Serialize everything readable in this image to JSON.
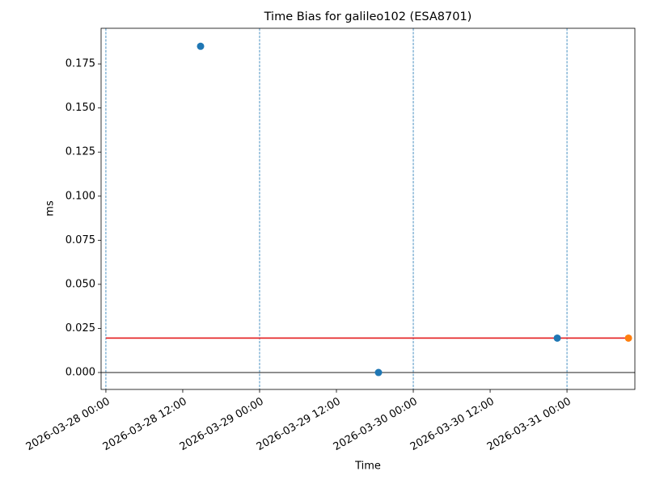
{
  "chart_data": {
    "type": "scatter",
    "title": "Time Bias for galileo102 (ESA8701)",
    "x_label": "Time",
    "y_label": "ms",
    "xlim": [
      "2026-03-27 23:15",
      "2026-03-31 10:36"
    ],
    "xticks": [
      "2026-03-28 00:00",
      "2026-03-28 12:00",
      "2026-03-29 00:00",
      "2026-03-29 12:00",
      "2026-03-30 00:00",
      "2026-03-30 12:00",
      "2026-03-31 00:00"
    ],
    "ylim": [
      -0.0096,
      0.1952
    ],
    "yticks": [
      {
        "value": 0,
        "label": "0.000"
      },
      {
        "value": 0.025,
        "label": "0.025"
      },
      {
        "value": 0.05,
        "label": "0.050"
      },
      {
        "value": 0.075,
        "label": "0.075"
      },
      {
        "value": 0.1,
        "label": "0.100"
      },
      {
        "value": 0.125,
        "label": "0.125"
      },
      {
        "value": 0.15,
        "label": "0.150"
      },
      {
        "value": 0.175,
        "label": "0.175"
      }
    ],
    "vlines": [
      "2026-03-28 00:00",
      "2026-03-29 00:00",
      "2026-03-30 00:00",
      "2026-03-31 00:00"
    ],
    "vline_color": "#1f77b4",
    "hline": 0,
    "hline_color": "#000000",
    "series": [
      {
        "style": "markers",
        "color": "#1f77b4",
        "x": [
          "2026-03-28 14:47",
          "2026-03-29 18:34",
          "2026-03-30 22:29"
        ],
        "values": [
          0.185,
          0,
          0.0195
        ]
      },
      {
        "style": "markers",
        "color": "#ff7f0e",
        "x": [
          "2026-03-31 09:36"
        ],
        "values": [
          0.0195
        ]
      },
      {
        "style": "line",
        "color": "#e41a1c",
        "x": [
          "2026-03-28 00:00",
          "2026-03-31 09:36"
        ],
        "values": [
          0.0195,
          0.0195
        ]
      }
    ]
  }
}
